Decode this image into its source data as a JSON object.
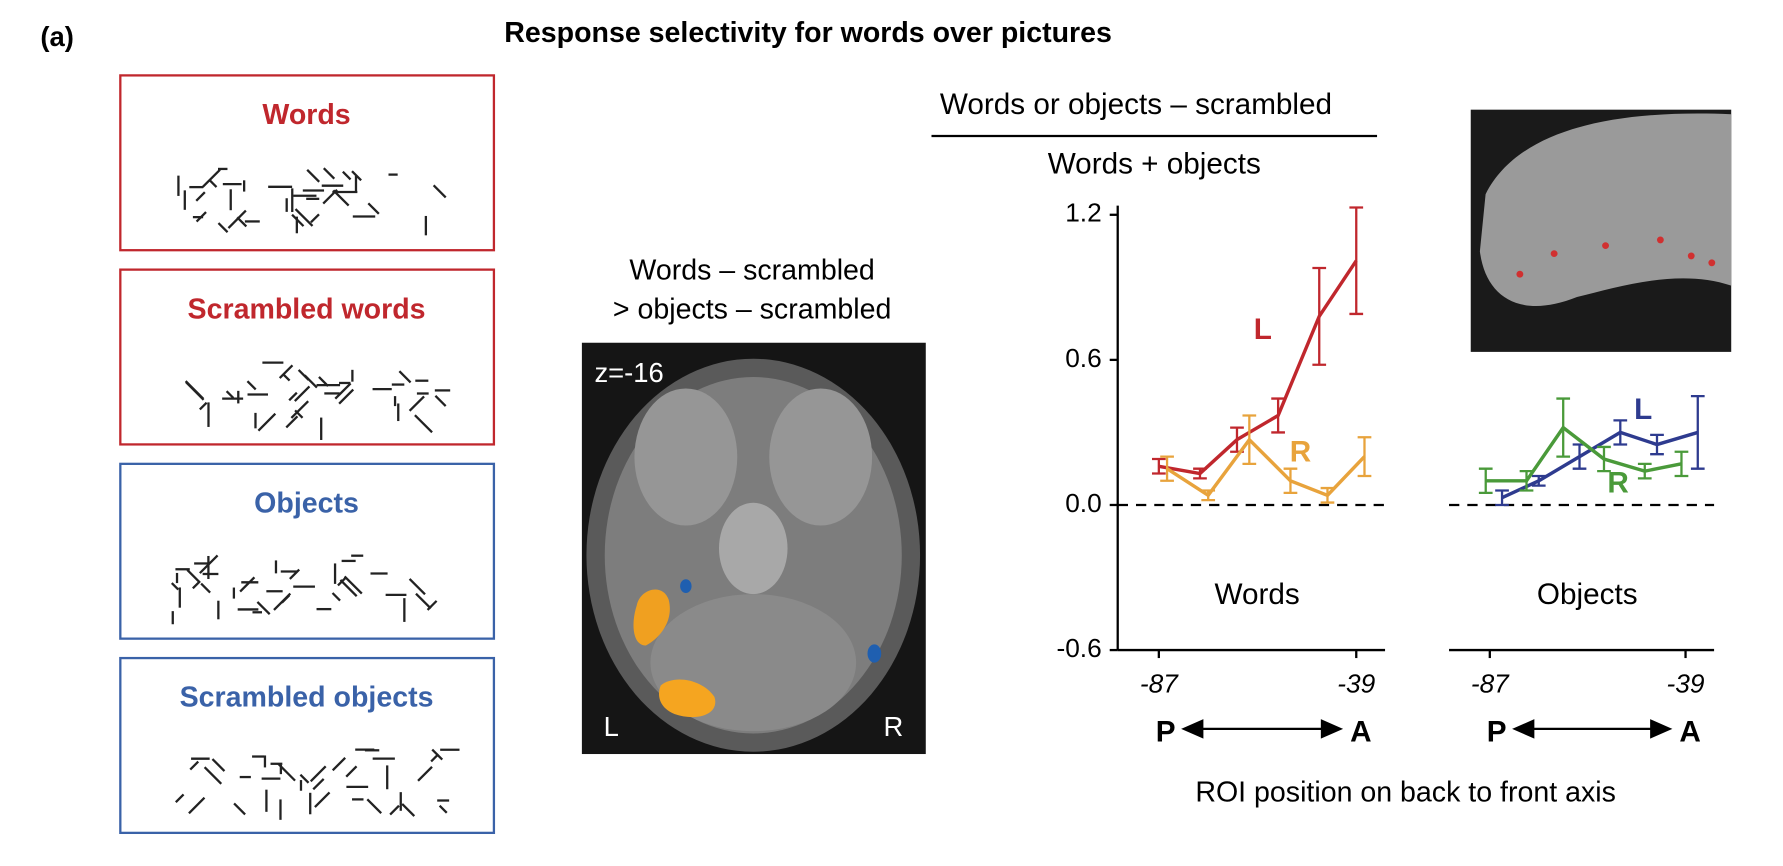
{
  "panel_label": "(a)",
  "title": "Response selectivity for words over pictures",
  "stimuli": [
    {
      "label": "Words",
      "color": "#c0272d"
    },
    {
      "label": "Scrambled words",
      "color": "#c0272d"
    },
    {
      "label": "Objects",
      "color": "#3a62a8"
    },
    {
      "label": "Scrambled objects",
      "color": "#3a62a8"
    }
  ],
  "contrast_map": {
    "caption": [
      "Words – scrambled",
      "> objects – scrambled"
    ],
    "slice": "z=-16",
    "left": "L",
    "right": "R"
  },
  "ratio": {
    "numerator": "Words or objects – scrambled",
    "denominator": "Words + objects"
  },
  "shared_x_label": "ROI position on back to front axis",
  "chart_data": [
    {
      "type": "line",
      "title": "Words",
      "xlim": [
        -97,
        -32
      ],
      "xticks": [
        -87,
        -39
      ],
      "ylim": [
        -0.6,
        1.2
      ],
      "yticks": [
        {
          "value": -0.6,
          "label": "-0.6"
        },
        {
          "value": 0,
          "label": "0.0"
        },
        0.6,
        1.2
      ],
      "x_end_labels": [
        "P",
        "A"
      ],
      "zero_line": true,
      "series": [
        {
          "name": "L",
          "color": "#c0272d",
          "x": [
            -87,
            -77,
            -68,
            -58,
            -48,
            -39
          ],
          "values": [
            0.16,
            0.13,
            0.27,
            0.37,
            0.78,
            1.01
          ],
          "errors": [
            0.03,
            0.02,
            0.05,
            0.07,
            0.2,
            0.22
          ]
        },
        {
          "name": "R",
          "color": "#e8a33c",
          "x": [
            -85,
            -75,
            -65,
            -55,
            -46,
            -37
          ],
          "values": [
            0.15,
            0.04,
            0.27,
            0.1,
            0.04,
            0.2
          ],
          "errors": [
            0.05,
            0.02,
            0.1,
            0.05,
            0.03,
            0.08
          ]
        }
      ]
    },
    {
      "type": "line",
      "title": "Objects",
      "xlim": [
        -97,
        -32
      ],
      "xticks": [
        -87,
        -39
      ],
      "ylim": [
        -0.6,
        1.2
      ],
      "x_end_labels": [
        "P",
        "A"
      ],
      "zero_line": true,
      "series": [
        {
          "name": "L",
          "color": "#2e3b8f",
          "x": [
            -84,
            -75,
            -65,
            -55,
            -46,
            -36
          ],
          "values": [
            0.03,
            0.1,
            0.2,
            0.3,
            0.25,
            0.3
          ],
          "errors": [
            0.03,
            0.02,
            0.05,
            0.05,
            0.04,
            0.15
          ]
        },
        {
          "name": "R",
          "color": "#4a9a3a",
          "x": [
            -88,
            -78,
            -69,
            -59,
            -49,
            -40
          ],
          "values": [
            0.1,
            0.1,
            0.32,
            0.19,
            0.14,
            0.17
          ],
          "errors": [
            0.05,
            0.04,
            0.12,
            0.05,
            0.03,
            0.05
          ]
        }
      ]
    }
  ]
}
